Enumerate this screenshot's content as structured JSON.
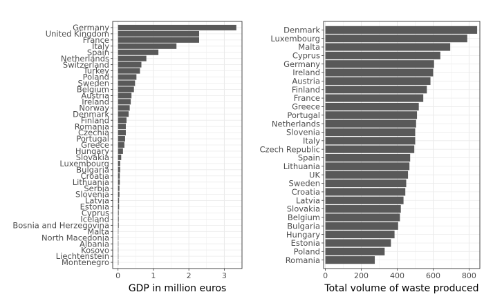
{
  "chart_data": [
    {
      "type": "bar",
      "orientation": "horizontal",
      "xlabel": "GDP in million euros",
      "ylabel": "",
      "xlim": [
        -0.15,
        3.5
      ],
      "xticks": [
        0,
        1,
        2,
        3
      ],
      "grid": true,
      "bar_color": "#595959",
      "categories": [
        "Germany",
        "United Kingdom",
        "France",
        "Italy",
        "Spain",
        "Netherlands",
        "Switzerland",
        "Turkey",
        "Poland",
        "Sweden",
        "Belgium",
        "Austria",
        "Ireland",
        "Norway",
        "Denmark",
        "Finland",
        "Romania",
        "Czechia",
        "Portugal",
        "Greece",
        "Hungary",
        "Slovakia",
        "Luxembourg",
        "Bulgaria",
        "Croatia",
        "Lithuania",
        "Serbia",
        "Slovenia",
        "Latvia",
        "Estonia",
        "Cyprus",
        "Iceland",
        "Bosnia and Herzegovina",
        "Malta",
        "North Macedonia",
        "Albania",
        "Kosovo",
        "Liechtenstein",
        "Montenegro"
      ],
      "values": [
        3.34,
        2.29,
        2.29,
        1.65,
        1.14,
        0.8,
        0.66,
        0.62,
        0.52,
        0.48,
        0.45,
        0.38,
        0.36,
        0.33,
        0.3,
        0.24,
        0.22,
        0.22,
        0.2,
        0.18,
        0.14,
        0.09,
        0.06,
        0.06,
        0.05,
        0.05,
        0.04,
        0.04,
        0.03,
        0.03,
        0.02,
        0.02,
        0.02,
        0.01,
        0.01,
        0.01,
        0.01,
        0.01,
        0.005
      ]
    },
    {
      "type": "bar",
      "orientation": "horizontal",
      "xlabel": "Total volume of waste produced",
      "ylabel": "",
      "xlim": [
        -10,
        860
      ],
      "xticks": [
        0,
        200,
        400,
        600,
        800
      ],
      "grid": true,
      "bar_color": "#595959",
      "categories": [
        "Denmark",
        "Luxembourg",
        "Malta",
        "Cyprus",
        "Germany",
        "Ireland",
        "Austria",
        "Finland",
        "France",
        "Greece",
        "Portugal",
        "Netherlands",
        "Slovenia",
        "Italy",
        "Czech Republic",
        "Spain",
        "Lithuania",
        "UK",
        "Sweden",
        "Croatia",
        "Latvia",
        "Slovakia",
        "Belgium",
        "Bulgaria",
        "Hungary",
        "Estonia",
        "Poland",
        "Romania"
      ],
      "values": [
        845,
        790,
        695,
        640,
        605,
        600,
        585,
        565,
        545,
        520,
        510,
        505,
        500,
        500,
        495,
        472,
        468,
        460,
        450,
        445,
        435,
        420,
        415,
        405,
        385,
        365,
        330,
        275
      ]
    }
  ]
}
